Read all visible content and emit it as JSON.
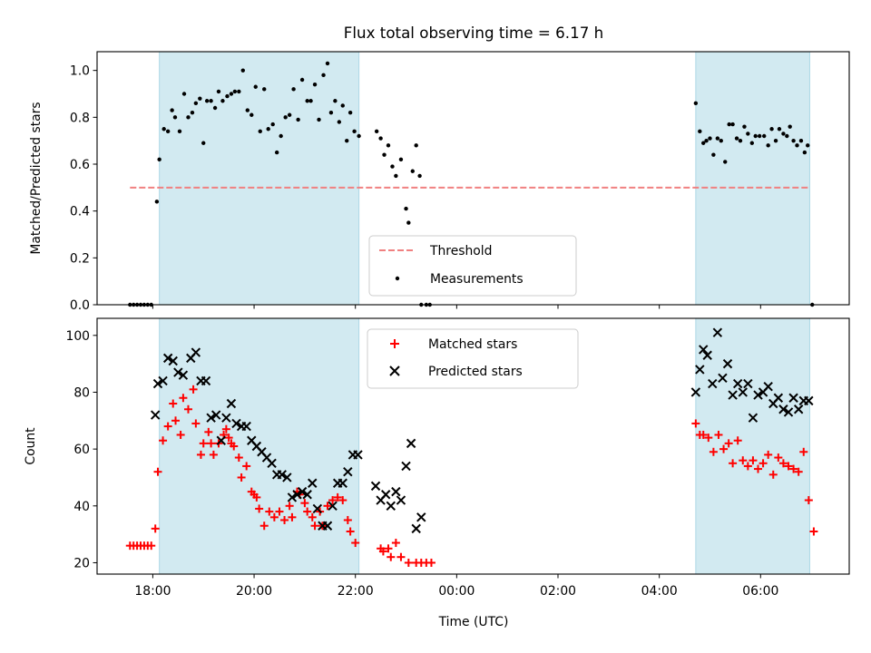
{
  "title": "Flux total observing time = 6.17 h",
  "colors": {
    "shade": "#add8e6",
    "threshold": "#f08080",
    "measurement": "#000000",
    "matched": "#ff0000",
    "predicted": "#000000"
  },
  "chart_data": [
    {
      "type": "scatter",
      "ylabel": "Matched/Predicted stars",
      "ylim": [
        0,
        1.08
      ],
      "xlim": [
        16.9,
        31.75
      ],
      "yticks": [
        0.0,
        0.2,
        0.4,
        0.6,
        0.8,
        1.0
      ],
      "ytick_labels": [
        "0.0",
        "0.2",
        "0.4",
        "0.6",
        "0.8",
        "1.0"
      ],
      "shaded_intervals": [
        [
          18.13,
          22.07
        ],
        [
          28.72,
          30.97
        ]
      ],
      "threshold": {
        "name": "Threshold",
        "y": 0.5,
        "x_range": [
          17.55,
          30.97
        ]
      },
      "legend": {
        "position": "lower center",
        "entries": [
          "Threshold",
          "Measurements"
        ]
      },
      "series": [
        {
          "name": "Measurements",
          "marker": "dot",
          "x": [
            17.55,
            17.62,
            17.69,
            17.76,
            17.83,
            17.9,
            17.97,
            18.08,
            18.13,
            18.22,
            18.3,
            18.38,
            18.44,
            18.53,
            18.62,
            18.7,
            18.78,
            18.85,
            18.93,
            19.0,
            19.07,
            19.15,
            19.23,
            19.3,
            19.38,
            19.47,
            19.55,
            19.62,
            19.7,
            19.78,
            19.87,
            19.95,
            20.03,
            20.12,
            20.2,
            20.28,
            20.37,
            20.45,
            20.53,
            20.62,
            20.7,
            20.78,
            20.87,
            20.95,
            21.05,
            21.12,
            21.2,
            21.28,
            21.37,
            21.45,
            21.52,
            21.6,
            21.68,
            21.75,
            21.83,
            21.9,
            21.98,
            22.07,
            22.42,
            22.5,
            22.57,
            22.65,
            22.73,
            22.8,
            22.9,
            23.0,
            23.05,
            23.13,
            23.2,
            23.27,
            23.3,
            23.4,
            23.47,
            28.72,
            28.8,
            28.87,
            28.93,
            29.0,
            29.07,
            29.15,
            29.22,
            29.3,
            29.38,
            29.45,
            29.53,
            29.6,
            29.68,
            29.75,
            29.83,
            29.9,
            29.98,
            30.07,
            30.15,
            30.22,
            30.3,
            30.37,
            30.45,
            30.52,
            30.58,
            30.65,
            30.72,
            30.8,
            30.87,
            30.93,
            31.02
          ],
          "y": [
            0.0,
            0.0,
            0.0,
            0.0,
            0.0,
            0.0,
            0.0,
            0.44,
            0.62,
            0.75,
            0.74,
            0.83,
            0.8,
            0.74,
            0.9,
            0.8,
            0.82,
            0.86,
            0.88,
            0.69,
            0.87,
            0.87,
            0.84,
            0.91,
            0.87,
            0.89,
            0.9,
            0.91,
            0.91,
            1.0,
            0.83,
            0.81,
            0.93,
            0.74,
            0.92,
            0.75,
            0.77,
            0.65,
            0.72,
            0.8,
            0.81,
            0.92,
            0.79,
            0.96,
            0.87,
            0.87,
            0.94,
            0.79,
            0.98,
            1.03,
            0.82,
            0.87,
            0.78,
            0.85,
            0.7,
            0.82,
            0.74,
            0.72,
            0.74,
            0.71,
            0.64,
            0.68,
            0.59,
            0.55,
            0.62,
            0.41,
            0.35,
            0.57,
            0.68,
            0.55,
            0.0,
            0.0,
            0.0,
            0.86,
            0.74,
            0.69,
            0.7,
            0.71,
            0.64,
            0.71,
            0.7,
            0.61,
            0.77,
            0.77,
            0.71,
            0.7,
            0.76,
            0.73,
            0.69,
            0.72,
            0.72,
            0.72,
            0.68,
            0.75,
            0.7,
            0.75,
            0.73,
            0.72,
            0.76,
            0.7,
            0.68,
            0.7,
            0.65,
            0.68,
            0.0
          ]
        }
      ]
    },
    {
      "type": "scatter",
      "xlabel": "Time (UTC)",
      "ylabel": "Count",
      "ylim": [
        16,
        106
      ],
      "xlim": [
        16.9,
        31.75
      ],
      "yticks": [
        20,
        40,
        60,
        80,
        100
      ],
      "ytick_labels": [
        "20",
        "40",
        "60",
        "80",
        "100"
      ],
      "xticks": [
        18,
        20,
        22,
        24,
        26,
        28,
        30
      ],
      "xtick_labels": [
        "18:00",
        "20:00",
        "22:00",
        "00:00",
        "02:00",
        "04:00",
        "06:00"
      ],
      "shaded_intervals": [
        [
          18.13,
          22.07
        ],
        [
          28.72,
          30.97
        ]
      ],
      "legend": {
        "position": "upper center",
        "entries": [
          "Matched stars",
          "Predicted stars"
        ]
      },
      "series": [
        {
          "name": "Matched stars",
          "marker": "plus",
          "x": [
            17.55,
            17.62,
            17.69,
            17.76,
            17.83,
            17.9,
            17.97,
            18.05,
            18.1,
            18.2,
            18.3,
            18.4,
            18.45,
            18.55,
            18.6,
            18.7,
            18.8,
            18.85,
            18.95,
            19.0,
            19.1,
            19.15,
            19.2,
            19.3,
            19.4,
            19.45,
            19.5,
            19.55,
            19.6,
            19.7,
            19.75,
            19.85,
            19.95,
            20.0,
            20.05,
            20.1,
            20.2,
            20.3,
            20.4,
            20.5,
            20.6,
            20.7,
            20.75,
            20.85,
            20.9,
            21.0,
            21.05,
            21.15,
            21.2,
            21.3,
            21.35,
            21.45,
            21.55,
            21.65,
            21.75,
            21.85,
            21.9,
            22.0,
            22.5,
            22.55,
            22.65,
            22.7,
            22.8,
            22.9,
            23.05,
            23.2,
            23.3,
            23.4,
            23.5,
            28.72,
            28.8,
            28.87,
            28.97,
            29.07,
            29.17,
            29.27,
            29.37,
            29.45,
            29.55,
            29.65,
            29.75,
            29.85,
            29.95,
            30.05,
            30.15,
            30.25,
            30.35,
            30.45,
            30.55,
            30.65,
            30.75,
            30.85,
            30.95,
            31.05
          ],
          "y": [
            26,
            26,
            26,
            26,
            26,
            26,
            26,
            32,
            52,
            63,
            68,
            76,
            70,
            65,
            78,
            74,
            81,
            69,
            58,
            62,
            66,
            62,
            58,
            62,
            65,
            67,
            64,
            62,
            61,
            57,
            50,
            54,
            45,
            44,
            43,
            39,
            33,
            38,
            36,
            38,
            35,
            40,
            36,
            45,
            44,
            41,
            38,
            36,
            33,
            38,
            33,
            40,
            42,
            43,
            42,
            35,
            31,
            27,
            25,
            24,
            25,
            22,
            27,
            22,
            20,
            20,
            20,
            20,
            20,
            69,
            65,
            65,
            64,
            59,
            65,
            60,
            62,
            55,
            63,
            56,
            54,
            56,
            53,
            55,
            58,
            51,
            57,
            55,
            54,
            53,
            52,
            59,
            42,
            31
          ]
        },
        {
          "name": "Predicted stars",
          "marker": "x",
          "x": [
            18.05,
            18.1,
            18.2,
            18.3,
            18.4,
            18.5,
            18.6,
            18.75,
            18.85,
            18.95,
            19.05,
            19.15,
            19.25,
            19.35,
            19.45,
            19.55,
            19.65,
            19.75,
            19.85,
            19.95,
            20.05,
            20.15,
            20.25,
            20.35,
            20.45,
            20.55,
            20.65,
            20.75,
            20.85,
            20.95,
            21.05,
            21.15,
            21.25,
            21.35,
            21.45,
            21.55,
            21.65,
            21.75,
            21.85,
            21.95,
            22.05,
            22.4,
            22.5,
            22.6,
            22.7,
            22.8,
            22.9,
            23.0,
            23.1,
            23.2,
            23.3,
            28.72,
            28.8,
            28.87,
            28.95,
            29.05,
            29.15,
            29.25,
            29.35,
            29.45,
            29.55,
            29.65,
            29.75,
            29.85,
            29.95,
            30.05,
            30.15,
            30.25,
            30.35,
            30.45,
            30.55,
            30.65,
            30.75,
            30.85,
            30.95
          ],
          "y": [
            72,
            83,
            84,
            92,
            91,
            87,
            86,
            92,
            94,
            84,
            84,
            71,
            72,
            63,
            71,
            76,
            69,
            68,
            68,
            63,
            61,
            59,
            57,
            55,
            51,
            51,
            50,
            43,
            44,
            45,
            44,
            48,
            39,
            33,
            33,
            40,
            48,
            48,
            52,
            58,
            58,
            47,
            42,
            44,
            40,
            45,
            42,
            54,
            62,
            32,
            36,
            80,
            88,
            95,
            93,
            83,
            101,
            85,
            90,
            79,
            83,
            80,
            83,
            71,
            79,
            80,
            82,
            76,
            78,
            74,
            73,
            78,
            74,
            77,
            77
          ]
        }
      ]
    }
  ]
}
